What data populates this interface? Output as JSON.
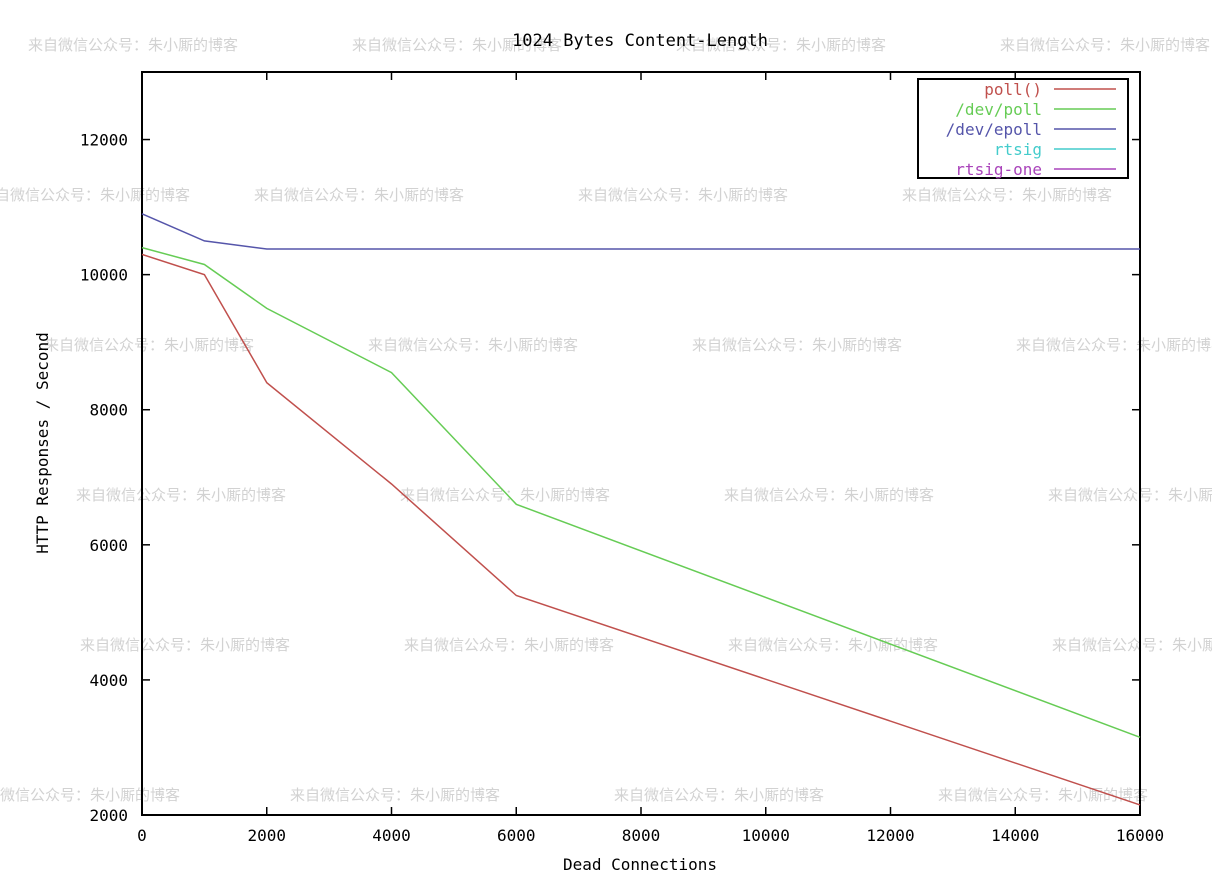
{
  "chart_data": {
    "type": "line",
    "title": "1024 Bytes Content-Length",
    "xlabel": "Dead Connections",
    "ylabel": "HTTP Responses / Second",
    "xlim": [
      0,
      16000
    ],
    "ylim": [
      2000,
      13000
    ],
    "x_ticks": [
      0,
      2000,
      4000,
      6000,
      8000,
      10000,
      12000,
      14000,
      16000
    ],
    "y_ticks": [
      2000,
      4000,
      6000,
      8000,
      10000,
      12000
    ],
    "grid": false,
    "legend_position": "top-right",
    "series": [
      {
        "name": "poll()",
        "color": "#c0504d",
        "x": [
          0,
          1000,
          2000,
          4000,
          6000,
          16000
        ],
        "y": [
          10300,
          10000,
          8400,
          6900,
          5250,
          2150
        ]
      },
      {
        "name": "/dev/poll",
        "color": "#66cc55",
        "x": [
          0,
          1000,
          2000,
          4000,
          6000,
          16000
        ],
        "y": [
          10400,
          10150,
          9500,
          8550,
          6600,
          3150
        ]
      },
      {
        "name": "/dev/epoll",
        "color": "#5555aa",
        "x": [
          0,
          1000,
          2000,
          4000,
          6000,
          16000
        ],
        "y": [
          10900,
          10500,
          10380,
          10380,
          10380,
          10380
        ]
      },
      {
        "name": "rtsig",
        "color": "#44cccc",
        "x": [],
        "y": []
      },
      {
        "name": "rtsig-one",
        "color": "#aa44bb",
        "x": [],
        "y": []
      }
    ]
  },
  "watermark": {
    "text": "来自微信公众号：朱小厮的博客"
  }
}
